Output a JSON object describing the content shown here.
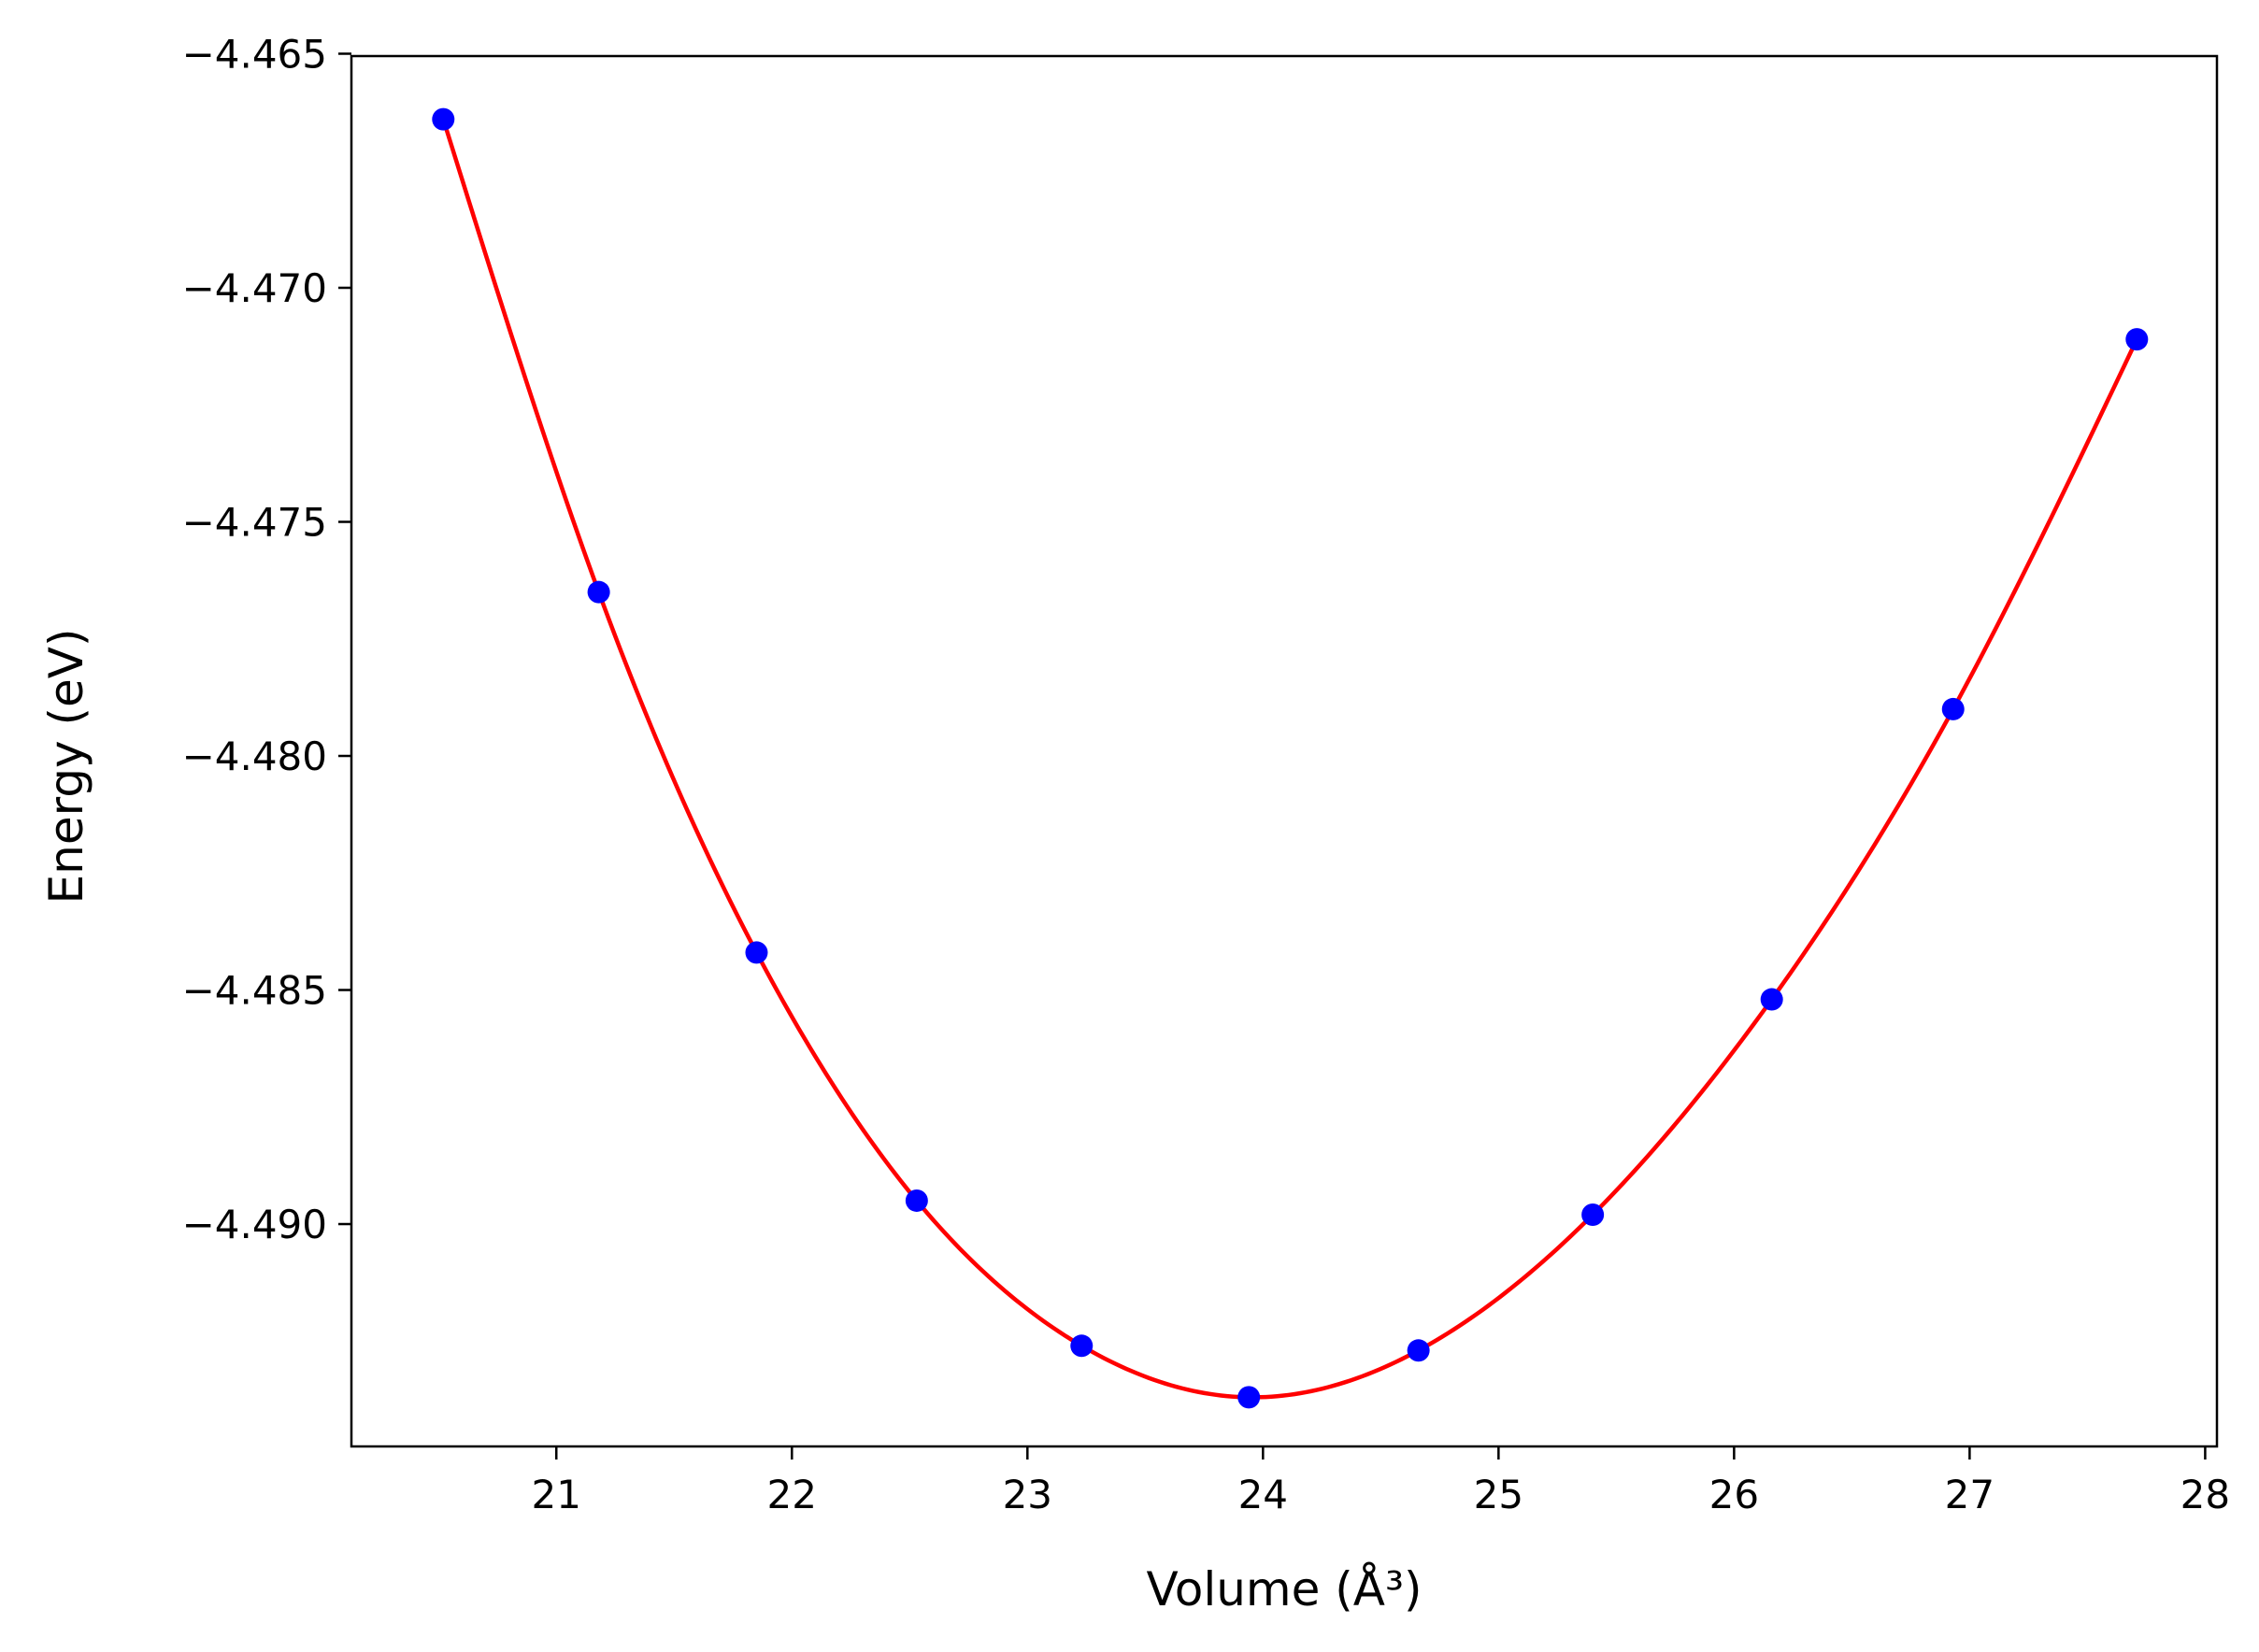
{
  "chart_data": {
    "type": "scatter",
    "xlabel": "Volume (Å³)",
    "ylabel": "Energy (eV)",
    "xlim": [
      20.13,
      28.05
    ],
    "ylim": [
      -4.49475,
      -4.46505
    ],
    "x_ticks": [
      21,
      22,
      23,
      24,
      25,
      26,
      27,
      28
    ],
    "y_ticks": [
      -4.465,
      -4.47,
      -4.475,
      -4.48,
      -4.485,
      -4.49
    ],
    "y_tick_labels": [
      "−4.465",
      "−4.470",
      "−4.475",
      "−4.480",
      "−4.485",
      "−4.490"
    ],
    "grid": false,
    "series": [
      {
        "kind": "points",
        "color": "#0000ff",
        "x": [
          20.52,
          21.18,
          21.85,
          22.53,
          23.23,
          23.94,
          24.66,
          25.4,
          26.16,
          26.93,
          27.71
        ],
        "y": [
          -4.4664,
          -4.4765,
          -4.4842,
          -4.4895,
          -4.4926,
          -4.4937,
          -4.4927,
          -4.4898,
          -4.4852,
          -4.479,
          -4.4711
        ]
      },
      {
        "kind": "fit-line",
        "color": "#ff0000"
      }
    ]
  }
}
